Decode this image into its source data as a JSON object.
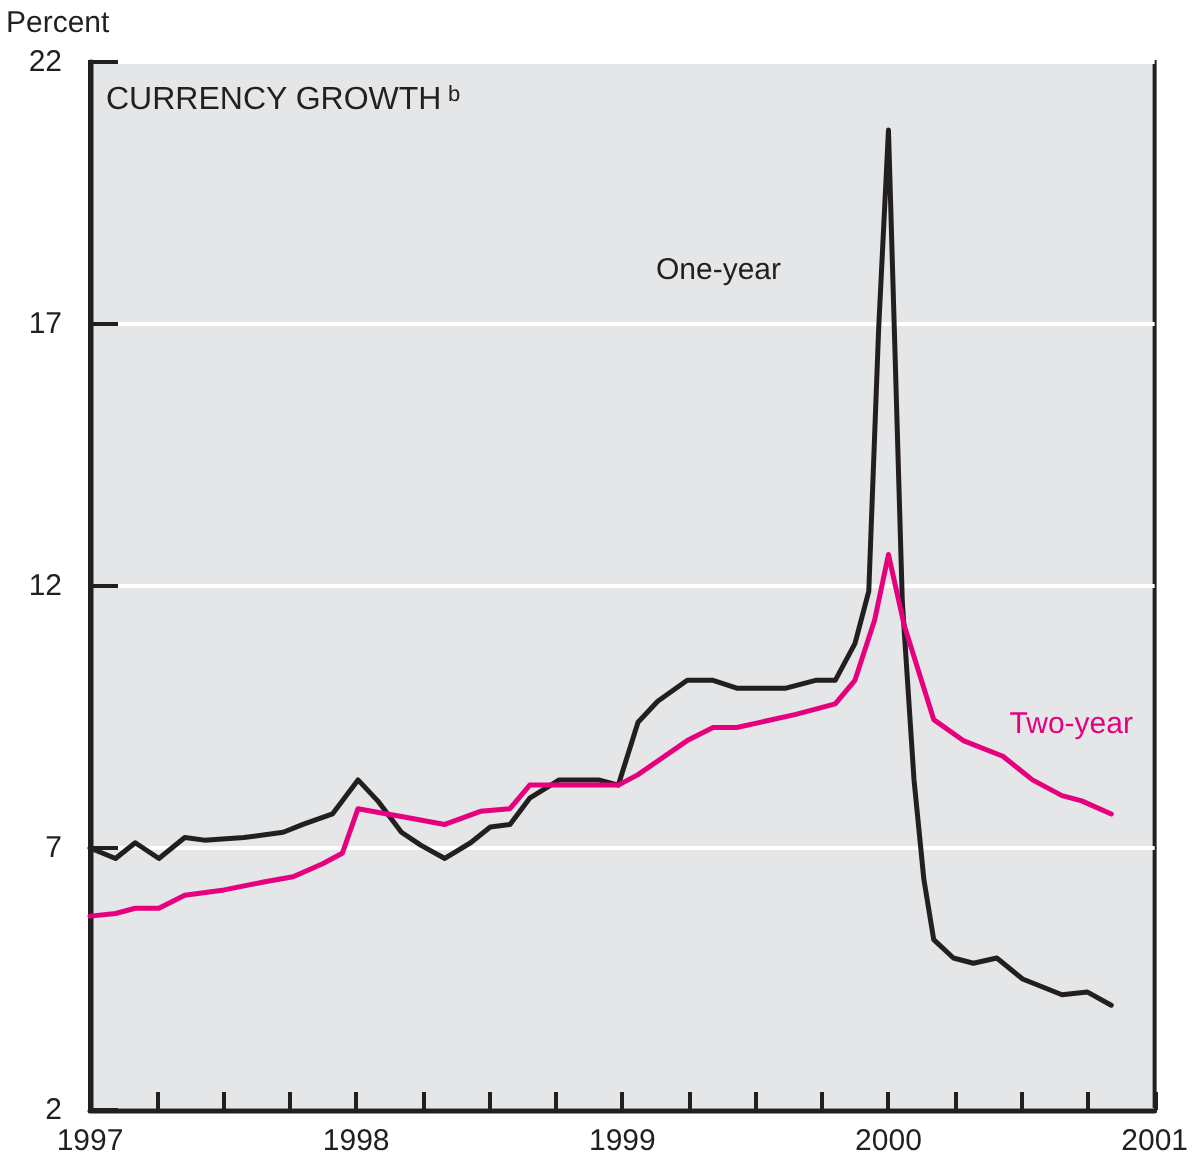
{
  "chart_data": {
    "type": "line",
    "title": "CURRENCY GROWTH$^{b}$",
    "ylabel": "Percent",
    "xlim": [
      1997,
      2001
    ],
    "xticks": [
      1997,
      {
        "value": 1997.25,
        "label": null
      },
      {
        "value": 1997.5,
        "label": null
      },
      {
        "value": 1997.75,
        "label": null
      },
      1998,
      {
        "value": 1998.25,
        "label": null
      },
      {
        "value": 1998.5,
        "label": null
      },
      {
        "value": 1998.75,
        "label": null
      },
      1999,
      {
        "value": 1999.25,
        "label": null
      },
      {
        "value": 1999.5,
        "label": null
      },
      {
        "value": 1999.75,
        "label": null
      },
      2000,
      {
        "value": 2000.25,
        "label": null
      },
      {
        "value": 2000.5,
        "label": null
      },
      {
        "value": 2000.75,
        "label": null
      },
      2001
    ],
    "ylim": [
      2,
      22
    ],
    "yticks": [
      2,
      7,
      12,
      17,
      22
    ],
    "grid": "y",
    "legend": false,
    "marker": "none",
    "line_style": "solid",
    "series": [
      {
        "name": "One-year",
        "color": "#231f20",
        "x": [
          1997.0,
          1997.096,
          1997.17,
          1997.259,
          1997.356,
          1997.43,
          1997.578,
          1997.726,
          1997.8,
          1997.911,
          1998.007,
          1998.081,
          1998.17,
          1998.244,
          1998.333,
          1998.43,
          1998.504,
          1998.578,
          1998.652,
          1998.763,
          1998.911,
          1998.985,
          1999.059,
          1999.133,
          1999.244,
          1999.341,
          1999.43,
          1999.615,
          1999.726,
          1999.8,
          1999.874,
          1999.926,
          1999.963,
          2000.0,
          2000.022,
          2000.052,
          2000.096,
          2000.133,
          2000.17,
          2000.244,
          2000.319,
          2000.407,
          2000.504,
          2000.652,
          2000.748,
          2000.837
        ],
        "values": [
          7.0,
          6.8,
          7.1,
          6.8,
          7.2,
          7.15,
          7.2,
          7.3,
          7.45,
          7.65,
          8.3,
          7.9,
          7.3,
          7.05,
          6.8,
          7.1,
          7.4,
          7.45,
          7.95,
          8.3,
          8.3,
          8.2,
          9.4,
          9.8,
          10.2,
          10.2,
          10.05,
          10.05,
          10.2,
          10.2,
          10.9,
          11.9,
          16.9,
          20.7,
          16.9,
          11.7,
          8.3,
          6.4,
          5.25,
          4.9,
          4.8,
          4.9,
          4.5,
          4.2,
          4.25,
          4.0
        ]
      },
      {
        "name": "Two-year",
        "color": "#e6007e",
        "x": [
          1997.0,
          1997.096,
          1997.17,
          1997.259,
          1997.356,
          1997.504,
          1997.652,
          1997.763,
          1997.874,
          1997.948,
          1998.007,
          1998.059,
          1998.17,
          1998.333,
          1998.467,
          1998.578,
          1998.652,
          1998.763,
          1998.985,
          1999.059,
          1999.244,
          1999.341,
          1999.43,
          1999.652,
          1999.8,
          1999.874,
          1999.948,
          2000.0,
          2000.059,
          2000.17,
          2000.281,
          2000.43,
          2000.541,
          2000.652,
          2000.726,
          2000.837
        ],
        "values": [
          5.7,
          5.75,
          5.85,
          5.85,
          6.1,
          6.2,
          6.35,
          6.45,
          6.7,
          6.9,
          7.75,
          7.7,
          7.6,
          7.45,
          7.7,
          7.75,
          8.2,
          8.2,
          8.2,
          8.4,
          9.05,
          9.3,
          9.3,
          9.55,
          9.75,
          10.2,
          11.35,
          12.6,
          11.25,
          9.45,
          9.05,
          8.75,
          8.3,
          8.0,
          7.9,
          7.65
        ]
      }
    ]
  }
}
